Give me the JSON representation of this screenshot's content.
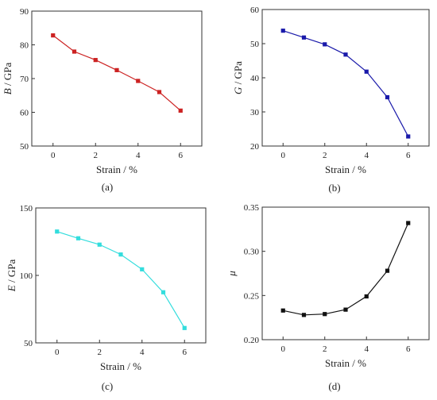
{
  "chart_data": [
    {
      "panel": "a",
      "caption": "(a)",
      "type": "line",
      "x": [
        0,
        1,
        2,
        3,
        4,
        5,
        6
      ],
      "series": [
        {
          "values": [
            82.8,
            78.0,
            75.5,
            72.5,
            69.3,
            66.0,
            60.5
          ],
          "color": "#cc2222"
        }
      ],
      "xlabel": "Strain / %",
      "ylabel_var": "B",
      "ylabel_unit": " / GPa",
      "xlim": [
        -1,
        7
      ],
      "ylim": [
        50,
        90
      ],
      "xticks": [
        "0",
        "2",
        "4",
        "6"
      ],
      "yticks": [
        "50",
        "60",
        "70",
        "80",
        "90"
      ]
    },
    {
      "panel": "b",
      "caption": "(b)",
      "type": "line",
      "x": [
        0,
        1,
        2,
        3,
        4,
        5,
        6
      ],
      "series": [
        {
          "values": [
            53.8,
            51.8,
            49.8,
            46.8,
            41.8,
            34.3,
            22.8
          ],
          "color": "#1a1aaa"
        }
      ],
      "xlabel": "Strain / %",
      "ylabel_var": "G",
      "ylabel_unit": " / GPa",
      "xlim": [
        -1,
        7
      ],
      "ylim": [
        20,
        60
      ],
      "xticks": [
        "0",
        "2",
        "4",
        "6"
      ],
      "yticks": [
        "20",
        "30",
        "40",
        "50",
        "60"
      ]
    },
    {
      "panel": "c",
      "caption": "(c)",
      "type": "line",
      "x": [
        0,
        1,
        2,
        3,
        4,
        5,
        6
      ],
      "series": [
        {
          "values": [
            132.5,
            127.5,
            122.8,
            115.5,
            104.5,
            87.5,
            61.0
          ],
          "color": "#33dddd"
        }
      ],
      "xlabel": "Strain / %",
      "ylabel_var": "E",
      "ylabel_unit": " / GPa",
      "xlim": [
        -1,
        7
      ],
      "ylim": [
        50,
        150
      ],
      "xticks": [
        "0",
        "2",
        "4",
        "6"
      ],
      "yticks": [
        "50",
        "100",
        "150"
      ]
    },
    {
      "panel": "d",
      "caption": "(d)",
      "type": "line",
      "x": [
        0,
        1,
        2,
        3,
        4,
        5,
        6
      ],
      "series": [
        {
          "values": [
            0.233,
            0.228,
            0.229,
            0.234,
            0.249,
            0.278,
            0.332
          ],
          "color": "#111111"
        }
      ],
      "xlabel": "Strain / %",
      "ylabel_var": "μ",
      "ylabel_unit": "",
      "xlim": [
        -1,
        7
      ],
      "ylim": [
        0.2,
        0.35
      ],
      "xticks": [
        "0",
        "2",
        "4",
        "6"
      ],
      "yticks": [
        "0.20",
        "0.25",
        "0.30",
        "0.35"
      ]
    }
  ]
}
